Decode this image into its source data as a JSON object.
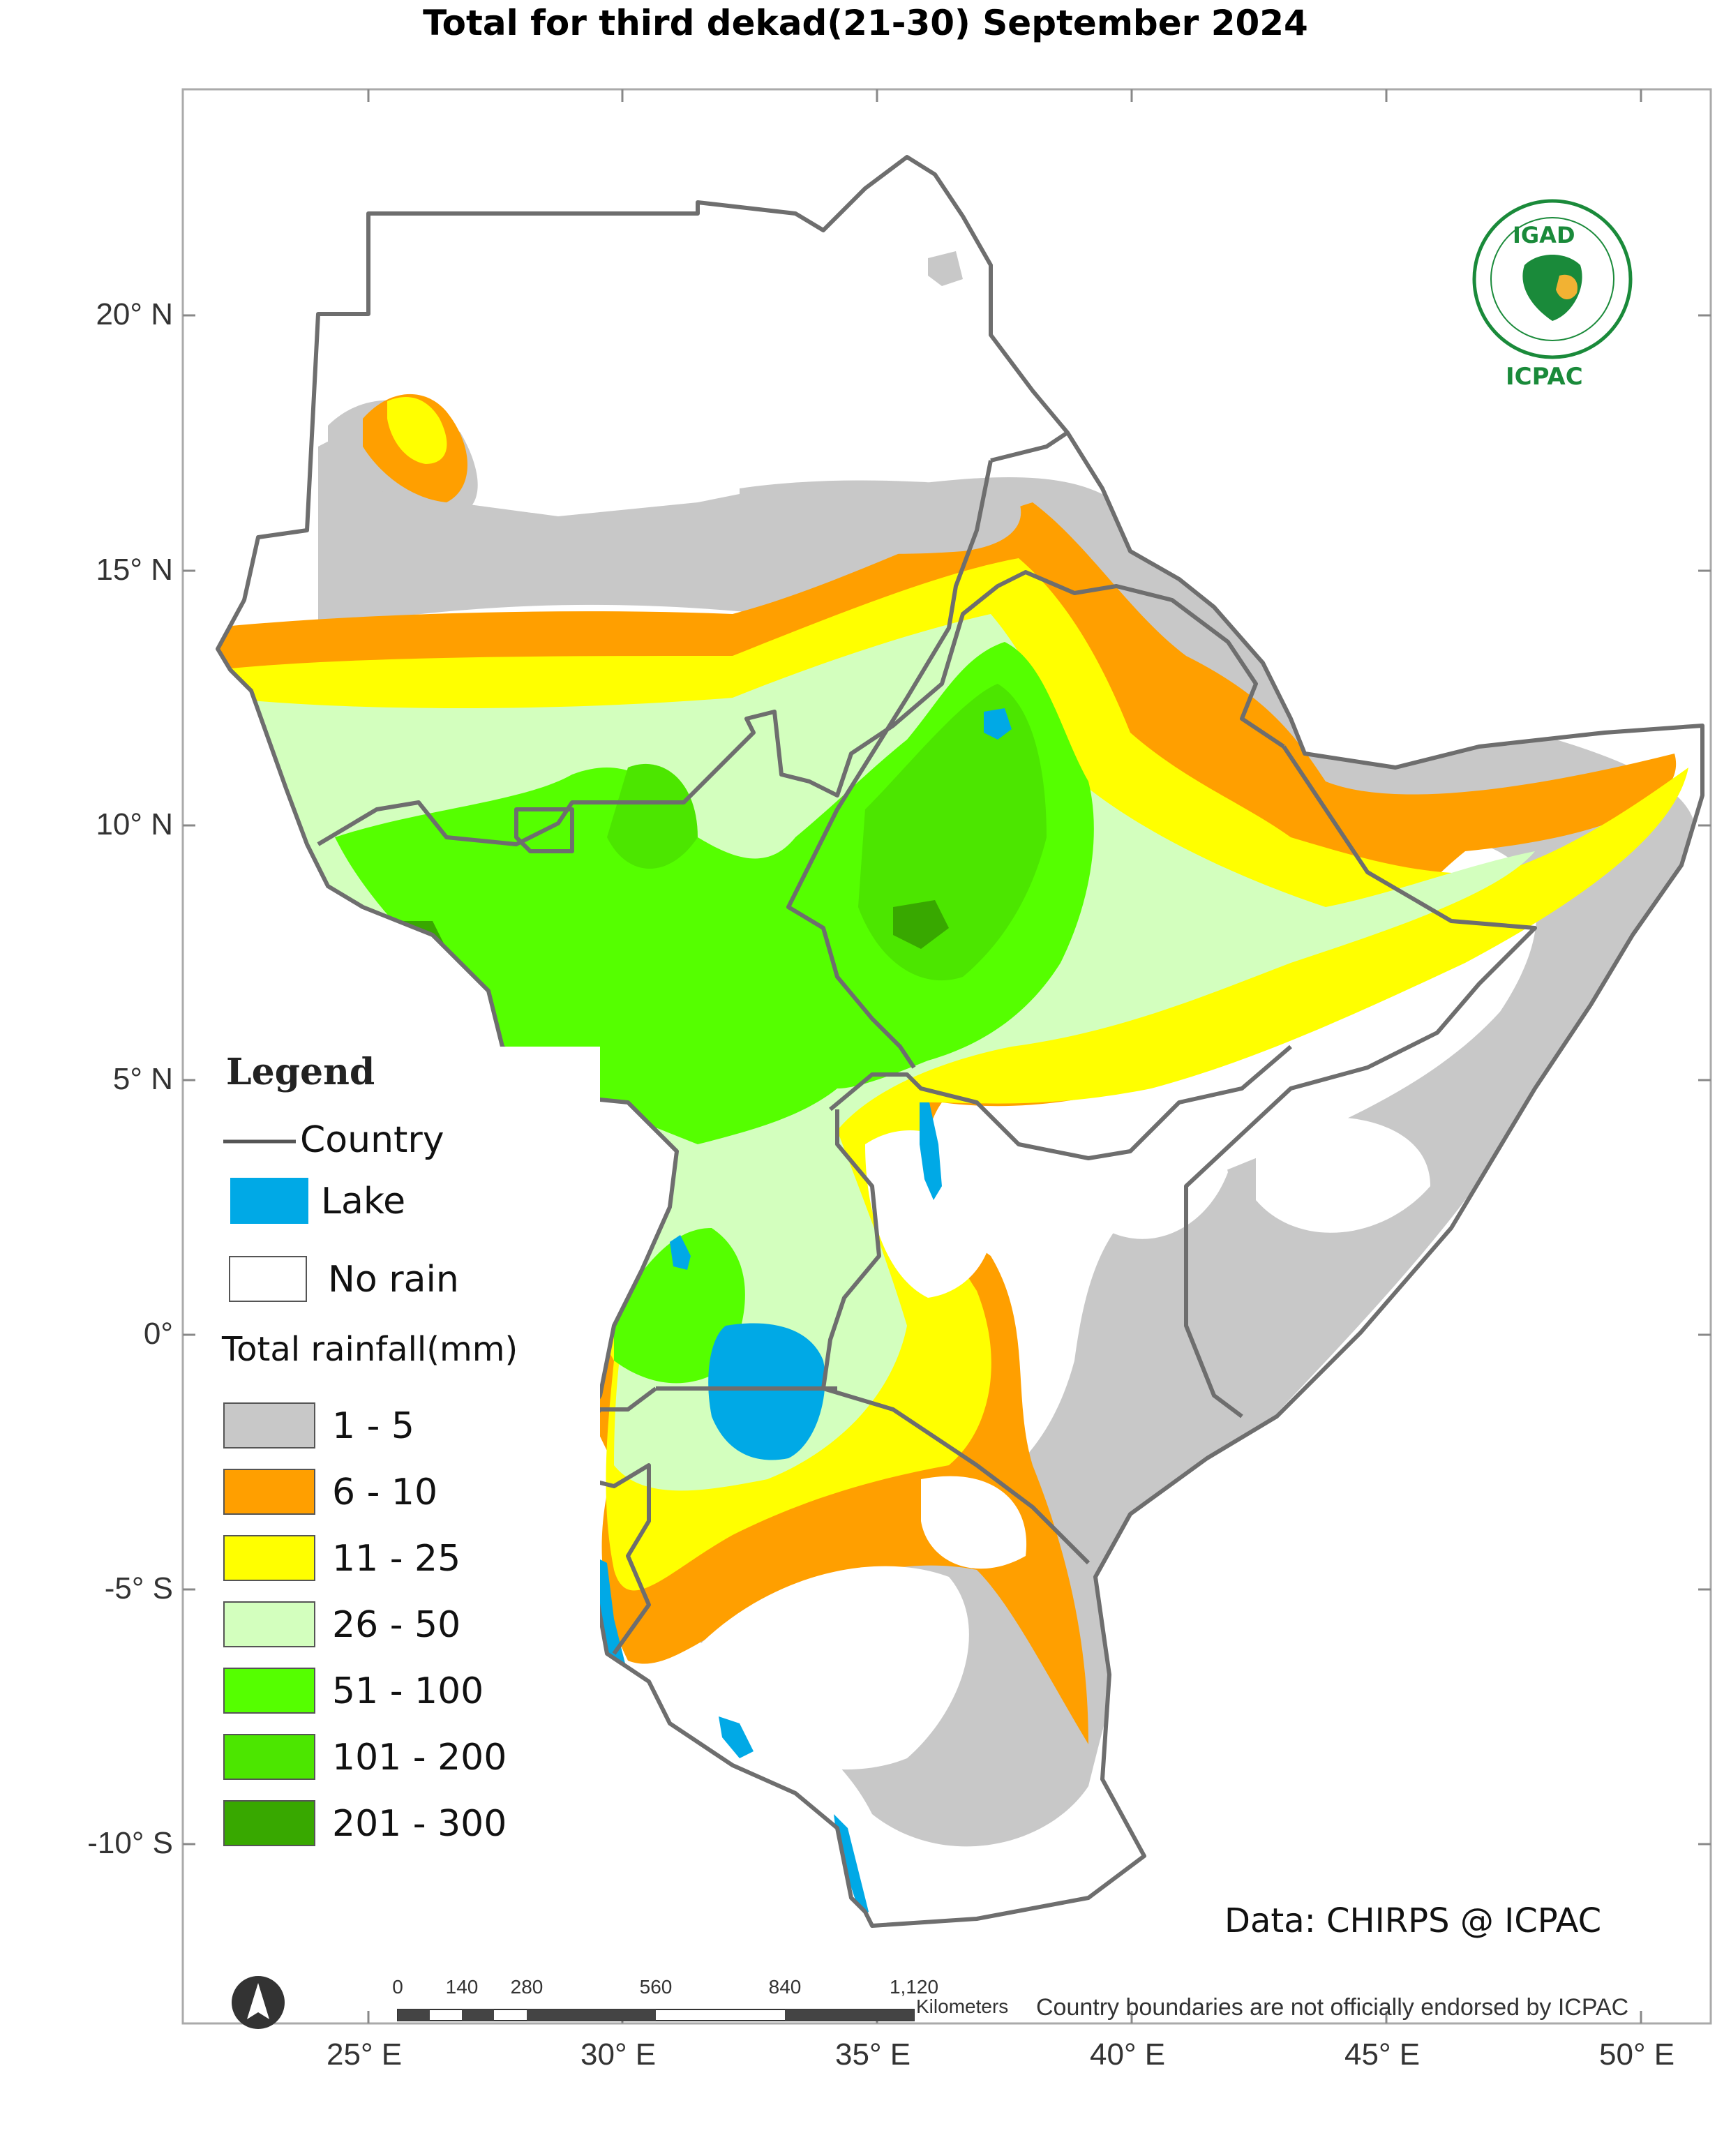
{
  "title": "Total  for third dekad(21-30) September 2024",
  "axes": {
    "lat_labels": [
      "20° N",
      "15° N",
      "10° N",
      "5° N",
      "0°",
      "-5° S",
      "-10° S"
    ],
    "lon_labels": [
      "25° E",
      "30° E",
      "35° E",
      "40° E",
      "45° E",
      "50° E"
    ]
  },
  "legend": {
    "heading": "Legend",
    "country_label": "Country",
    "lake_label": "Lake",
    "no_rain_label": "No rain",
    "total_label": "Total rainfall(mm)",
    "classes": [
      {
        "label": "1 - 5",
        "color": "#c8c8c8"
      },
      {
        "label": "6 - 10",
        "color": "#ff9f00"
      },
      {
        "label": "11 - 25",
        "color": "#ffff00"
      },
      {
        "label": "26 - 50",
        "color": "#d3ffbe"
      },
      {
        "label": "51 - 100",
        "color": "#55ff00"
      },
      {
        "label": "101 - 200",
        "color": "#4ce600"
      },
      {
        "label": "201 - 300",
        "color": "#38a800"
      }
    ],
    "lake_color": "#00a9e6",
    "country_line_color": "#6e6e6e"
  },
  "credit": "Data: CHIRPS @ ICPAC",
  "disclaimer": "Country boundaries are not officially endorsed by ICPAC",
  "scalebar": {
    "ticks": [
      "0",
      "140",
      "280",
      "560",
      "840",
      "1,120"
    ],
    "unit": "Kilometers"
  },
  "logo": {
    "top_text": "IGAD",
    "bottom_text": "ICPAC",
    "icon": "igad-logo"
  },
  "north_arrow": "north-arrow-icon"
}
